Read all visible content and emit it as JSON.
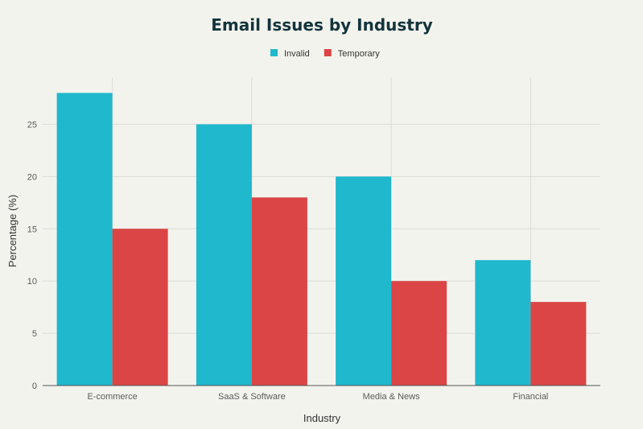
{
  "chart_data": {
    "type": "bar",
    "title": "Email Issues by Industry",
    "xlabel": "Industry",
    "ylabel": "Percentage (%)",
    "categories": [
      "E-commerce",
      "SaaS & Software",
      "Media & News",
      "Financial"
    ],
    "series": [
      {
        "name": "Invalid",
        "values": [
          28,
          25,
          20,
          12
        ],
        "color": "#1FB8CD"
      },
      {
        "name": "Temporary",
        "values": [
          15,
          18,
          10,
          8
        ],
        "color": "#DB4545"
      }
    ],
    "yticks": [
      0,
      5,
      10,
      15,
      20,
      25
    ],
    "ylim": [
      0,
      29.5
    ],
    "grid": true,
    "legend": "top-center"
  }
}
